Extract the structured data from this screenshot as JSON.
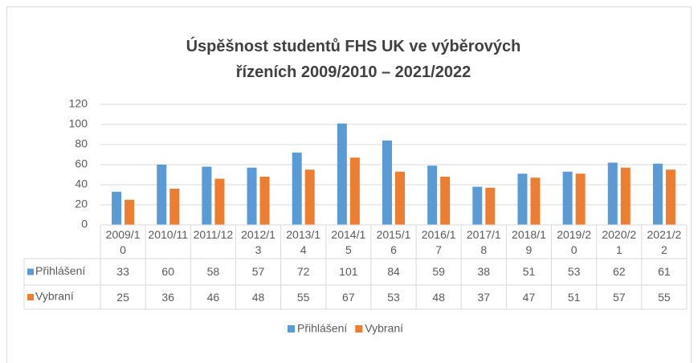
{
  "chart_data": {
    "type": "bar",
    "title": "Úspěšnost studentů FHS UK ve výběrových řízeních 2009/2010 – 2021/2022",
    "categories": [
      "2009/10",
      "2010/11",
      "2011/12",
      "2012/13",
      "2013/14",
      "2014/15",
      "2015/16",
      "2016/17",
      "2017/18",
      "2018/19",
      "2019/20",
      "2020/21",
      "2021/22"
    ],
    "series": [
      {
        "name": "Přihlášení",
        "color": "#5b9bd5",
        "values": [
          33,
          60,
          58,
          57,
          72,
          101,
          84,
          59,
          38,
          51,
          53,
          62,
          61
        ]
      },
      {
        "name": "Vybraní",
        "color": "#ed7d31",
        "values": [
          25,
          36,
          46,
          48,
          55,
          67,
          53,
          48,
          37,
          47,
          51,
          57,
          55
        ]
      }
    ],
    "ylim": [
      0,
      120
    ],
    "yticks": [
      0,
      20,
      40,
      60,
      80,
      100,
      120
    ],
    "grid": true,
    "data_table": true,
    "legend": "bottom"
  }
}
